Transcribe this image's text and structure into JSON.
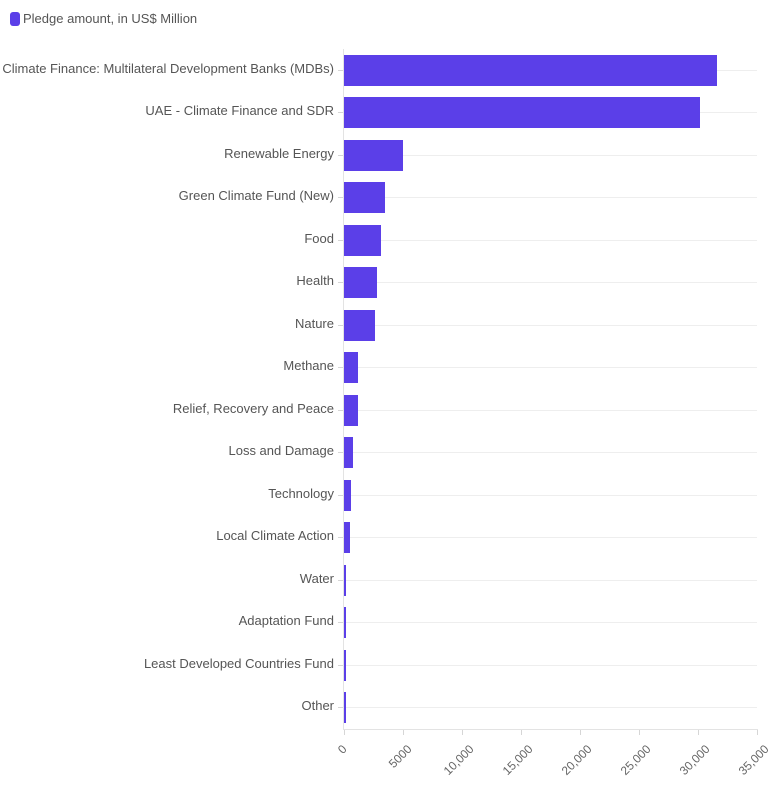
{
  "legend": {
    "label": "Pledge amount, in US$ Million",
    "color": "#5B3FE8"
  },
  "chart_data": {
    "type": "bar",
    "orientation": "horizontal",
    "title": "",
    "xlabel": "",
    "ylabel": "",
    "xlim": [
      0,
      35000
    ],
    "x_ticks": [
      "0",
      "5000",
      "10,000",
      "15,000",
      "20,000",
      "25,000",
      "30,000",
      "35,000"
    ],
    "grid": true,
    "legend_position": "top-left",
    "categories": [
      "Climate Finance: Multilateral Development Banks (MDBs)",
      "UAE - Climate Finance and SDR",
      "Renewable Energy",
      "Green Climate Fund (New)",
      "Food",
      "Health",
      "Nature",
      "Methane",
      "Relief, Recovery and Peace",
      "Loss and Damage",
      "Technology",
      "Local Climate Action",
      "Water",
      "Adaptation Fund",
      "Least Developed Countries Fund",
      "Other"
    ],
    "series": [
      {
        "name": "Pledge amount, in US$ Million",
        "color": "#5B3FE8",
        "values": [
          31600,
          30200,
          5000,
          3500,
          3100,
          2800,
          2600,
          1200,
          1200,
          800,
          600,
          500,
          190,
          190,
          180,
          180
        ]
      }
    ]
  }
}
